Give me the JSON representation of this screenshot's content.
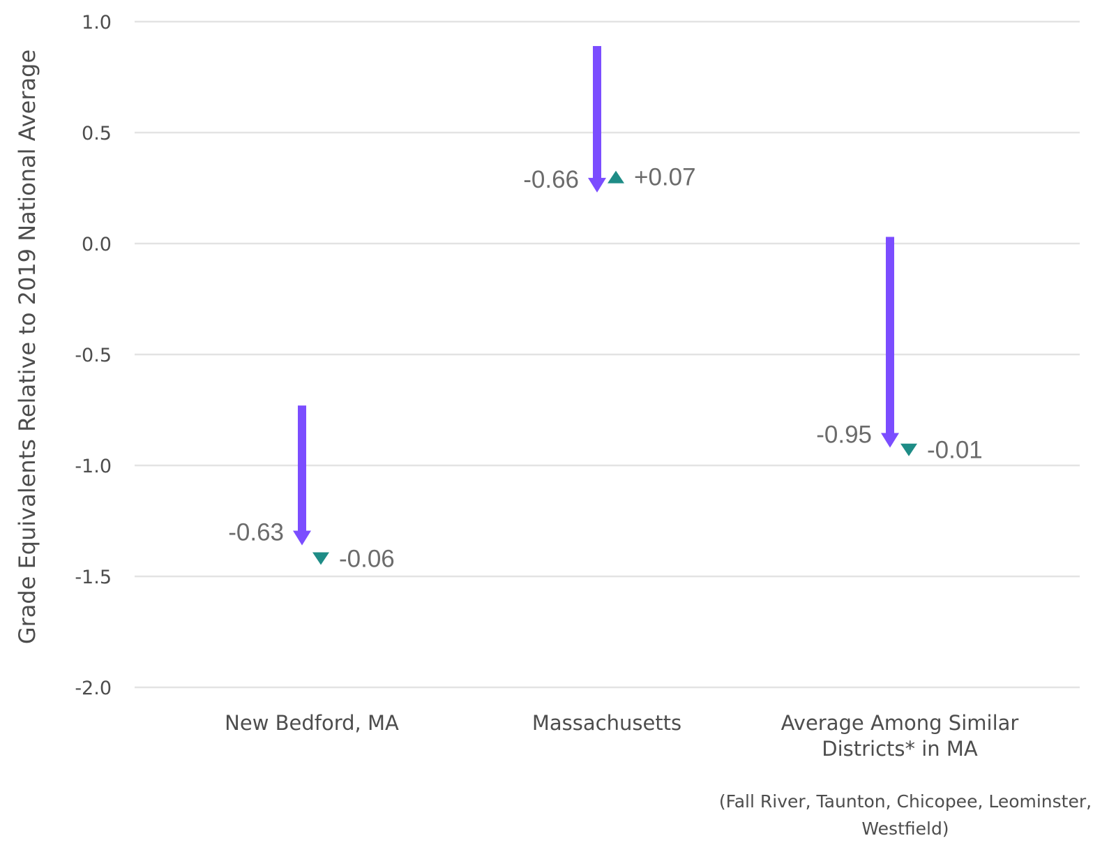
{
  "chart_data": {
    "type": "arrow",
    "ylabel": "Grade Equivalents Relative to 2019 National Average",
    "ylim": [
      -2.0,
      1.0
    ],
    "yticks": [
      "1.0",
      "0.5",
      "0.0",
      "-0.5",
      "-1.0",
      "-1.5",
      "-2.0"
    ],
    "grid": true,
    "colors": {
      "decline": "#7B4DFF",
      "change": "#1E8C86"
    },
    "categories": [
      {
        "label_lines": [
          "New Bedford, MA"
        ],
        "note_lines": [],
        "start": -0.73,
        "decline": -0.63,
        "decline_label": "-0.63",
        "change": -0.06,
        "change_label": "-0.06"
      },
      {
        "label_lines": [
          "Massachusetts"
        ],
        "note_lines": [],
        "start": 0.89,
        "decline": -0.66,
        "decline_label": "-0.66",
        "change": 0.07,
        "change_label": "+0.07"
      },
      {
        "label_lines": [
          "Average Among Similar",
          "Districts* in MA"
        ],
        "note_lines": [
          "(Fall River, Taunton, Chicopee, Leominster,",
          "Westfield)"
        ],
        "start": 0.03,
        "decline": -0.95,
        "decline_label": "-0.95",
        "change": -0.01,
        "change_label": "-0.01"
      }
    ]
  }
}
